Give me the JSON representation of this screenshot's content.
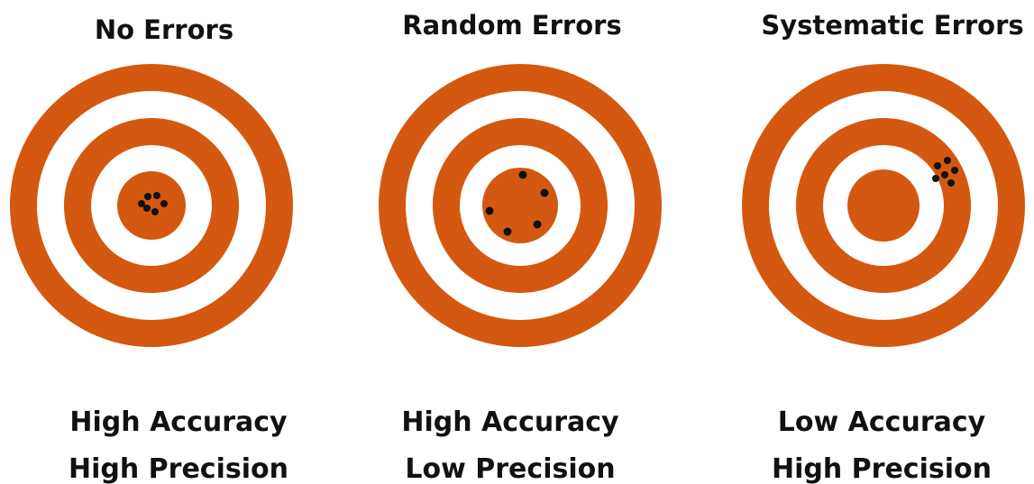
{
  "panels": [
    {
      "title": "No Errors",
      "accuracy": "High Accuracy",
      "precision": "High Precision"
    },
    {
      "title": "Random Errors",
      "accuracy": "High Accuracy",
      "precision": "Low Precision"
    },
    {
      "title": "Systematic Errors",
      "accuracy": "Low Accuracy",
      "precision": "High Precision"
    }
  ]
}
